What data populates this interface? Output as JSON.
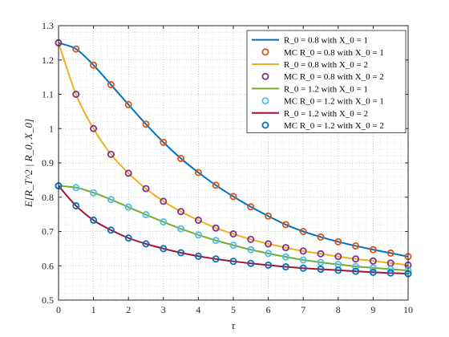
{
  "chart_data": {
    "type": "line",
    "xlabel": "τ",
    "ylabel": "E[R_T^2 | R_0, X_0]",
    "xlim": [
      0,
      10
    ],
    "ylim": [
      0.5,
      1.3
    ],
    "xticks": [
      0,
      1,
      2,
      3,
      4,
      5,
      6,
      7,
      8,
      9,
      10
    ],
    "yticks": [
      0.5,
      0.6,
      0.7,
      0.8,
      0.9,
      1.0,
      1.1,
      1.2,
      1.3
    ],
    "xtick_labels": [
      "0",
      "1",
      "2",
      "3",
      "4",
      "5",
      "6",
      "7",
      "8",
      "9",
      "10"
    ],
    "ytick_labels": [
      "0.5",
      "0.6",
      "0.7",
      "0.8",
      "0.9",
      "1",
      "1.1",
      "1.2",
      "1.3"
    ],
    "grid": "on (major and minor, dotted)",
    "legend_position": "top-right",
    "series": [
      {
        "name": "R_0 = 0.8 with X_0 = 1",
        "kind": "line",
        "color": "#0072BD",
        "x": [
          0,
          0.5,
          1,
          1.5,
          2,
          2.5,
          3,
          3.5,
          4,
          4.5,
          5,
          5.5,
          6,
          6.5,
          7,
          7.5,
          8,
          8.5,
          9,
          9.5,
          10
        ],
        "y": [
          1.25,
          1.232,
          1.185,
          1.128,
          1.07,
          1.013,
          0.96,
          0.913,
          0.872,
          0.835,
          0.802,
          0.772,
          0.745,
          0.72,
          0.7,
          0.684,
          0.67,
          0.658,
          0.647,
          0.637,
          0.627
        ]
      },
      {
        "name": "MC R_0 = 0.8 with X_0 = 1",
        "kind": "markers",
        "color": "#D95319",
        "x": [
          0,
          0.5,
          1,
          1.5,
          2,
          2.5,
          3,
          3.5,
          4,
          4.5,
          5,
          5.5,
          6,
          6.5,
          7,
          7.5,
          8,
          8.5,
          9,
          9.5,
          10
        ],
        "y": [
          1.25,
          1.232,
          1.185,
          1.128,
          1.07,
          1.013,
          0.96,
          0.913,
          0.872,
          0.835,
          0.802,
          0.772,
          0.745,
          0.72,
          0.7,
          0.684,
          0.67,
          0.658,
          0.647,
          0.637,
          0.627
        ]
      },
      {
        "name": "R_0 = 0.8 with X_0 = 2",
        "kind": "line",
        "color": "#EDB120",
        "x": [
          0,
          0.5,
          1,
          1.5,
          2,
          2.5,
          3,
          3.5,
          4,
          4.5,
          5,
          5.5,
          6,
          6.5,
          7,
          7.5,
          8,
          8.5,
          9,
          9.5,
          10
        ],
        "y": [
          1.25,
          1.1,
          1.0,
          0.925,
          0.87,
          0.825,
          0.788,
          0.758,
          0.733,
          0.71,
          0.693,
          0.677,
          0.664,
          0.653,
          0.643,
          0.635,
          0.627,
          0.62,
          0.614,
          0.608,
          0.602
        ]
      },
      {
        "name": "MC R_0 = 0.8 with X_0 = 2",
        "kind": "markers",
        "color": "#7E2F8E",
        "x": [
          0,
          0.5,
          1,
          1.5,
          2,
          2.5,
          3,
          3.5,
          4,
          4.5,
          5,
          5.5,
          6,
          6.5,
          7,
          7.5,
          8,
          8.5,
          9,
          9.5,
          10
        ],
        "y": [
          1.25,
          1.1,
          1.0,
          0.925,
          0.87,
          0.825,
          0.788,
          0.758,
          0.733,
          0.71,
          0.693,
          0.677,
          0.664,
          0.653,
          0.643,
          0.635,
          0.627,
          0.62,
          0.614,
          0.608,
          0.602
        ]
      },
      {
        "name": "R_0 = 1.2 with X_0 = 1",
        "kind": "line",
        "color": "#77AC30",
        "x": [
          0,
          0.5,
          1,
          1.5,
          2,
          2.5,
          3,
          3.5,
          4,
          4.5,
          5,
          5.5,
          6,
          6.5,
          7,
          7.5,
          8,
          8.5,
          9,
          9.5,
          10
        ],
        "y": [
          0.833,
          0.828,
          0.813,
          0.793,
          0.771,
          0.749,
          0.728,
          0.708,
          0.69,
          0.674,
          0.66,
          0.647,
          0.636,
          0.626,
          0.617,
          0.61,
          0.604,
          0.598,
          0.594,
          0.59,
          0.586
        ]
      },
      {
        "name": "MC R_0 = 1.2 with X_0 = 1",
        "kind": "markers",
        "color": "#4DBEEE",
        "x": [
          0,
          0.5,
          1,
          1.5,
          2,
          2.5,
          3,
          3.5,
          4,
          4.5,
          5,
          5.5,
          6,
          6.5,
          7,
          7.5,
          8,
          8.5,
          9,
          9.5,
          10
        ],
        "y": [
          0.833,
          0.828,
          0.813,
          0.793,
          0.771,
          0.749,
          0.728,
          0.708,
          0.69,
          0.674,
          0.66,
          0.647,
          0.636,
          0.626,
          0.617,
          0.61,
          0.604,
          0.598,
          0.594,
          0.59,
          0.586
        ]
      },
      {
        "name": "R_0 = 1.2 with X_0 = 2",
        "kind": "line",
        "color": "#A2142F",
        "x": [
          0,
          0.5,
          1,
          1.5,
          2,
          2.5,
          3,
          3.5,
          4,
          4.5,
          5,
          5.5,
          6,
          6.5,
          7,
          7.5,
          8,
          8.5,
          9,
          9.5,
          10
        ],
        "y": [
          0.833,
          0.775,
          0.733,
          0.704,
          0.681,
          0.664,
          0.65,
          0.638,
          0.628,
          0.62,
          0.613,
          0.607,
          0.602,
          0.597,
          0.593,
          0.59,
          0.587,
          0.584,
          0.581,
          0.579,
          0.577
        ]
      },
      {
        "name": "MC R_0 = 1.2 with X_0 = 2",
        "kind": "markers",
        "color": "#0072BD",
        "x": [
          0,
          0.5,
          1,
          1.5,
          2,
          2.5,
          3,
          3.5,
          4,
          4.5,
          5,
          5.5,
          6,
          6.5,
          7,
          7.5,
          8,
          8.5,
          9,
          9.5,
          10
        ],
        "y": [
          0.833,
          0.775,
          0.733,
          0.704,
          0.681,
          0.664,
          0.65,
          0.638,
          0.628,
          0.62,
          0.613,
          0.607,
          0.602,
          0.597,
          0.593,
          0.59,
          0.587,
          0.584,
          0.581,
          0.579,
          0.577
        ]
      }
    ]
  }
}
